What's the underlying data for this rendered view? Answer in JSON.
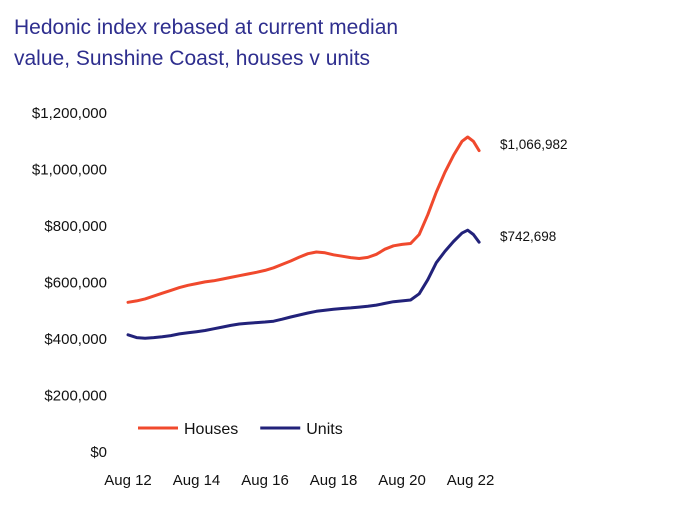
{
  "chart_data": {
    "type": "line",
    "title_line1": "Hedonic index rebased at current median",
    "title_line2": "value, Sunshine Coast, houses v units",
    "xlabel": "",
    "ylabel": "",
    "ylim": [
      0,
      1200000
    ],
    "y_ticks": [
      {
        "value": 0,
        "label": "$0"
      },
      {
        "value": 200000,
        "label": "$200,000"
      },
      {
        "value": 400000,
        "label": "$400,000"
      },
      {
        "value": 600000,
        "label": "$600,000"
      },
      {
        "value": 800000,
        "label": "$800,000"
      },
      {
        "value": 1000000,
        "label": "$1,000,000"
      },
      {
        "value": 1200000,
        "label": "$1,200,000"
      }
    ],
    "x_ticks": [
      {
        "t": 0,
        "label": "Aug 12"
      },
      {
        "t": 24,
        "label": "Aug 14"
      },
      {
        "t": 48,
        "label": "Aug 16"
      },
      {
        "t": 72,
        "label": "Aug 18"
      },
      {
        "t": 96,
        "label": "Aug 20"
      },
      {
        "t": 120,
        "label": "Aug 22"
      }
    ],
    "xlim": [
      0,
      124
    ],
    "grid": false,
    "legend_position": "bottom-left",
    "series": [
      {
        "name": "Houses",
        "color": "#f0492d",
        "end_label": "$1,066,982",
        "t": [
          0,
          3,
          6,
          9,
          12,
          15,
          18,
          21,
          24,
          27,
          30,
          33,
          36,
          39,
          42,
          45,
          48,
          51,
          54,
          57,
          60,
          63,
          66,
          69,
          72,
          75,
          78,
          81,
          84,
          87,
          90,
          93,
          96,
          99,
          102,
          105,
          108,
          111,
          114,
          117,
          119,
          121,
          123
        ],
        "values": [
          530000,
          535000,
          542000,
          552000,
          562000,
          572000,
          582000,
          590000,
          596000,
          602000,
          606000,
          612000,
          618000,
          624000,
          630000,
          636000,
          643000,
          652000,
          664000,
          676000,
          690000,
          702000,
          708000,
          705000,
          698000,
          693000,
          688000,
          685000,
          689000,
          700000,
          718000,
          730000,
          735000,
          738000,
          770000,
          840000,
          920000,
          990000,
          1050000,
          1100000,
          1115000,
          1100000,
          1066982
        ]
      },
      {
        "name": "Units",
        "color": "#22227a",
        "end_label": "$742,698",
        "t": [
          0,
          3,
          6,
          9,
          12,
          15,
          18,
          21,
          24,
          27,
          30,
          33,
          36,
          39,
          42,
          45,
          48,
          51,
          54,
          57,
          60,
          63,
          66,
          69,
          72,
          75,
          78,
          81,
          84,
          87,
          90,
          93,
          96,
          99,
          102,
          105,
          108,
          111,
          114,
          117,
          119,
          121,
          123
        ],
        "values": [
          415000,
          405000,
          403000,
          405000,
          408000,
          412000,
          418000,
          422000,
          426000,
          430000,
          436000,
          442000,
          448000,
          453000,
          456000,
          458000,
          460000,
          463000,
          470000,
          478000,
          485000,
          492000,
          498000,
          502000,
          505000,
          508000,
          510000,
          513000,
          516000,
          520000,
          526000,
          532000,
          535000,
          538000,
          560000,
          610000,
          670000,
          710000,
          745000,
          775000,
          785000,
          770000,
          742698
        ]
      }
    ]
  }
}
